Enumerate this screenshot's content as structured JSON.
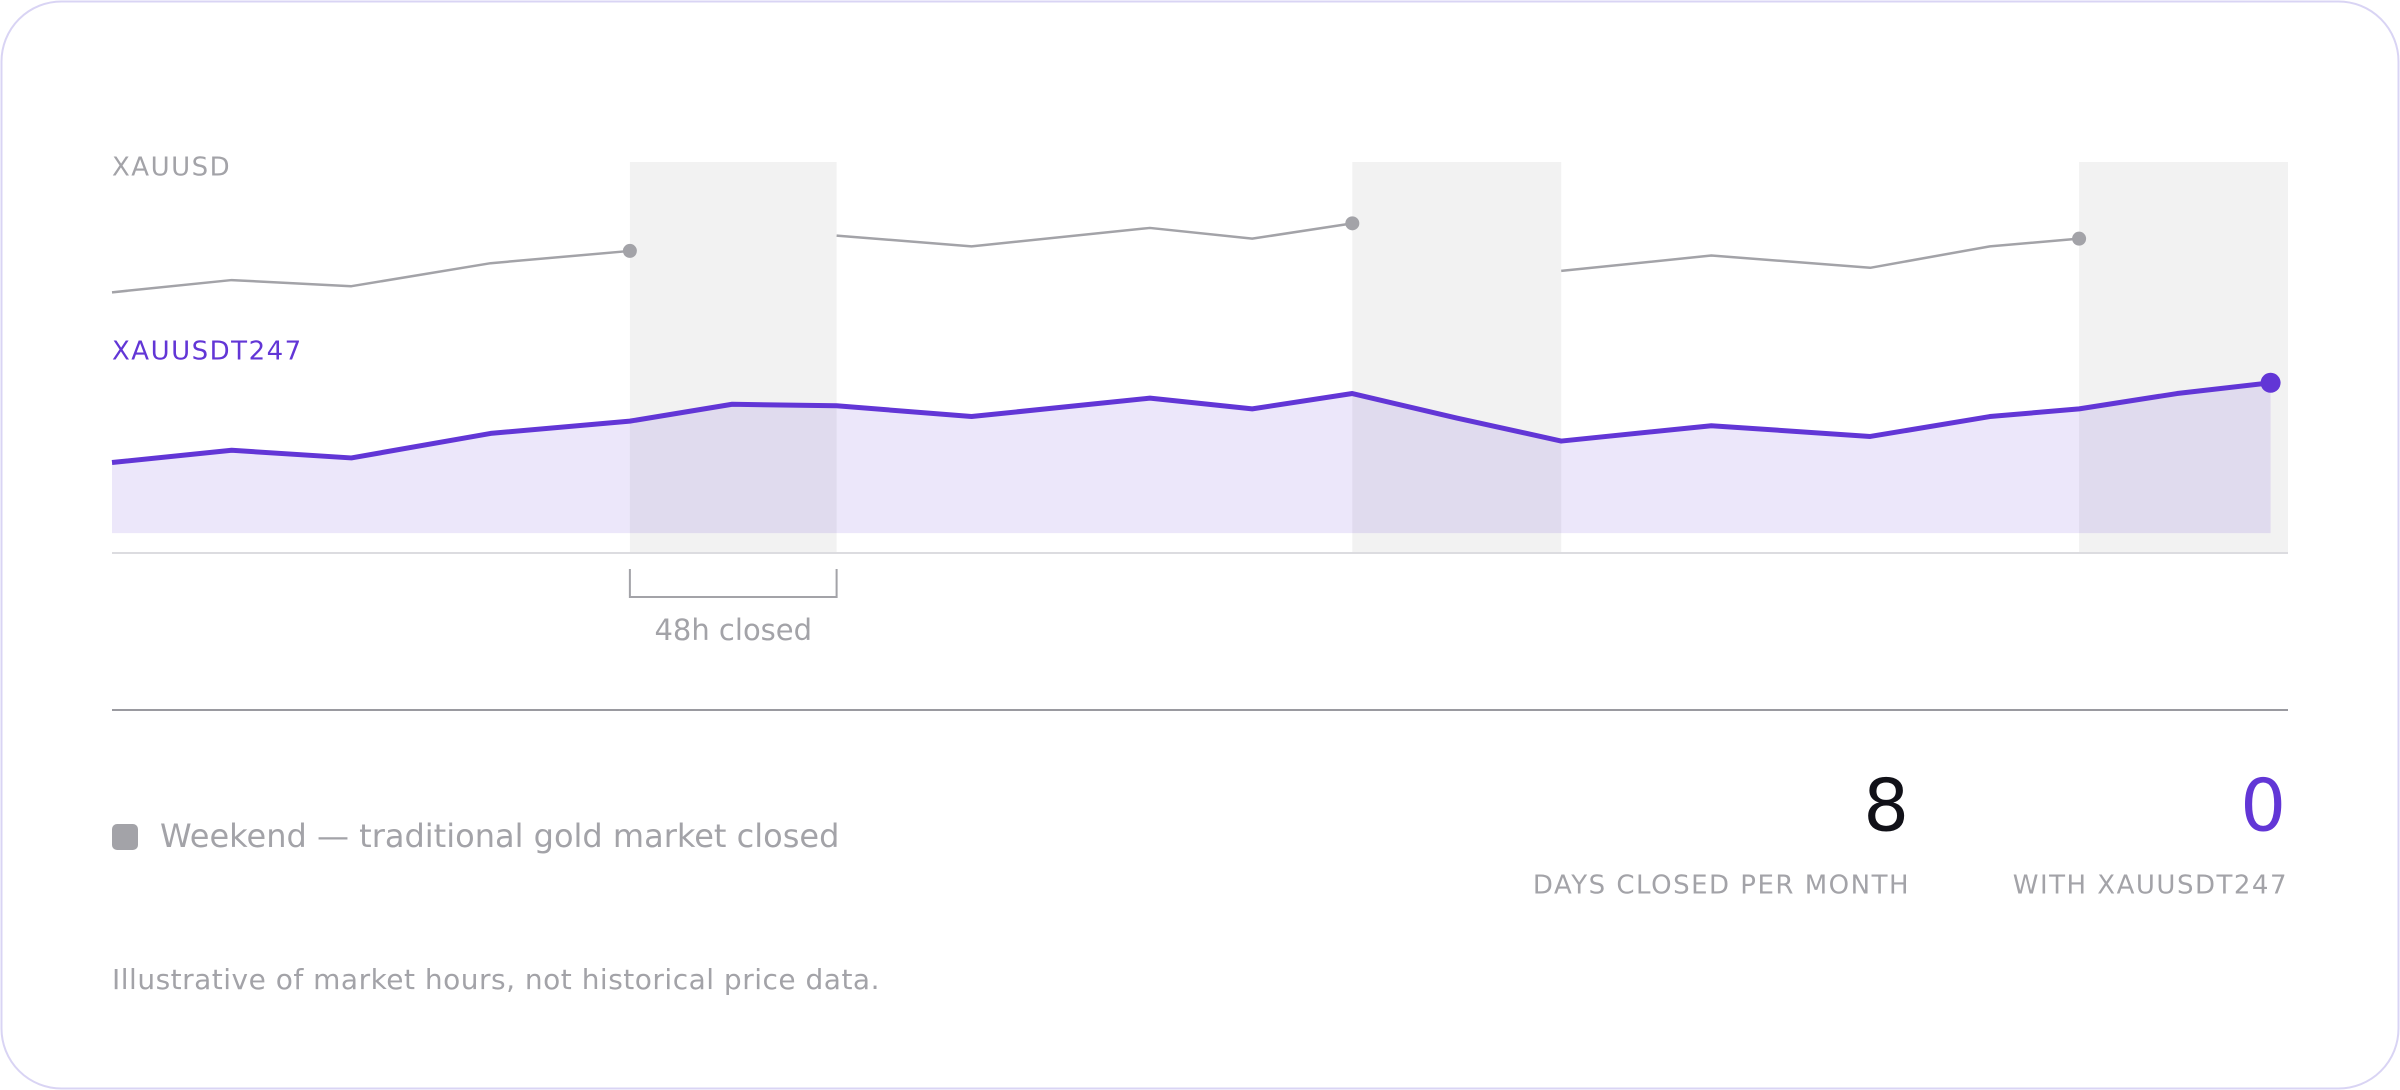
{
  "chart_data": {
    "type": "line",
    "x": [
      0,
      5.5,
      11,
      17.4,
      23.8,
      28.5,
      33.3,
      39.5,
      47.7,
      52.4,
      57,
      61.8,
      66.6,
      73.5,
      80.8,
      86.3,
      90.4,
      94.9,
      99.2
    ],
    "xlim": [
      0,
      100
    ],
    "ylim": [
      -13,
      242
    ],
    "series": [
      {
        "name": "XAUUSD",
        "color": "#a3a3a8",
        "values": [
          157,
          165,
          161,
          176,
          184,
          null,
          194,
          187,
          199,
          192,
          202,
          null,
          171,
          181,
          173,
          187,
          192,
          null,
          null
        ]
      },
      {
        "name": "XAUUSDT247",
        "color": "#6236d6",
        "area": true,
        "values": [
          46,
          54,
          49,
          65,
          73,
          84,
          83,
          76,
          88,
          81,
          91,
          75,
          60,
          70,
          63,
          76,
          81,
          91,
          98
        ]
      }
    ],
    "weekends": [
      [
        23.8,
        33.3
      ],
      [
        57,
        66.6
      ],
      [
        90.4,
        100
      ]
    ],
    "shade_color": "#f2f2f2",
    "annotation": "48h closed",
    "legend": "Weekend — traditional gold market closed"
  },
  "stats": [
    {
      "value": 8,
      "label": "DAYS CLOSED PER MONTH",
      "color": "#111118"
    },
    {
      "value": 0,
      "label": "WITH XAUUSDT247",
      "color": "#6236d6"
    }
  ],
  "footnote": "Illustrative of market hours, not historical price data."
}
